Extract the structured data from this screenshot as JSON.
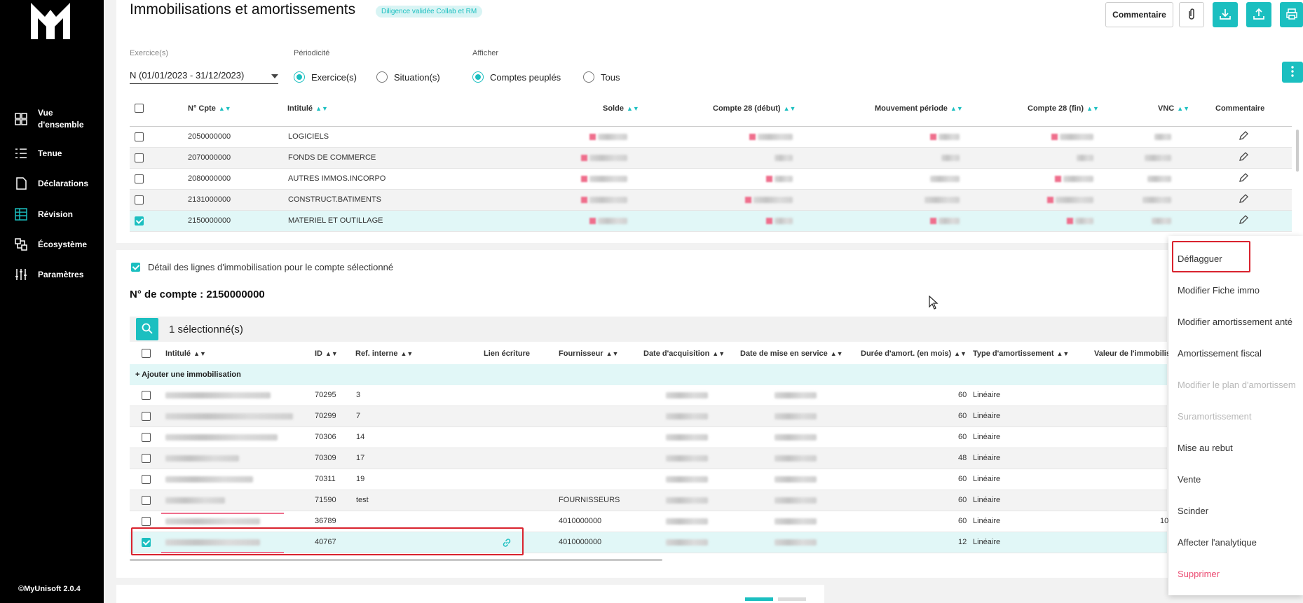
{
  "sidebar": {
    "items": [
      {
        "label": "Vue d'ensemble",
        "icon": "grid-icon"
      },
      {
        "label": "Tenue",
        "icon": "list-icon"
      },
      {
        "label": "Déclarations",
        "icon": "document-icon"
      },
      {
        "label": "Révision",
        "icon": "table-icon"
      },
      {
        "label": "Écosystème",
        "icon": "network-icon"
      },
      {
        "label": "Paramètres",
        "icon": "sliders-icon"
      }
    ],
    "version": "©MyUnisoft 2.0.4"
  },
  "header": {
    "title": "Immobilisations et amortissements",
    "badge": "Diligence validée Collab et RM",
    "comment_label": "Commentaire"
  },
  "filters": {
    "exercice_label": "Exercice(s)",
    "exercice_value": "N (01/01/2023 - 31/12/2023)",
    "periodicite_label": "Périodicité",
    "periodicite_options": [
      "Exercice(s)",
      "Situation(s)"
    ],
    "periodicite_selected": "Exercice(s)",
    "afficher_label": "Afficher",
    "afficher_options": [
      "Comptes peuplés",
      "Tous"
    ],
    "afficher_selected": "Comptes peuplés"
  },
  "accounts_table": {
    "headers": [
      "N° Cpte",
      "Intitulé",
      "Solde",
      "Compte 28 (début)",
      "Mouvement période",
      "Compte 28 (fin)",
      "VNC",
      "Commentaire"
    ],
    "rows": [
      {
        "num": "2050000000",
        "label": "LOGICIELS",
        "checked": false
      },
      {
        "num": "2070000000",
        "label": "FONDS DE COMMERCE",
        "checked": false
      },
      {
        "num": "2080000000",
        "label": "AUTRES IMMOS.INCORPO",
        "checked": false
      },
      {
        "num": "2131000000",
        "label": "CONSTRUCT.BATIMENTS",
        "checked": false
      },
      {
        "num": "2150000000",
        "label": "MATERIEL ET OUTILLAGE",
        "checked": true
      }
    ]
  },
  "detail": {
    "toggle_label": "Détail des lignes d'immobilisation pour le compte sélectionné",
    "account_title": "N° de compte : 2150000000",
    "selected_count": "1 sélectionné(s)",
    "add_label": "+ Ajouter une immobilisation",
    "headers": [
      "Intitulé",
      "ID",
      "Ref. interne",
      "Lien écriture",
      "Fournisseur",
      "Date d'acquisition",
      "Date de mise en service",
      "Durée d'amort. (en mois)",
      "Type d'amortissement",
      "Valeur de l'immobilis"
    ],
    "rows": [
      {
        "id": "70295",
        "ref": "3",
        "fournisseur": "",
        "duree": "60",
        "type": "Linéaire",
        "checked": false,
        "valeur": ""
      },
      {
        "id": "70299",
        "ref": "7",
        "fournisseur": "",
        "duree": "60",
        "type": "Linéaire",
        "checked": false,
        "valeur": ""
      },
      {
        "id": "70306",
        "ref": "14",
        "fournisseur": "",
        "duree": "60",
        "type": "Linéaire",
        "checked": false,
        "valeur": ""
      },
      {
        "id": "70309",
        "ref": "17",
        "fournisseur": "",
        "duree": "48",
        "type": "Linéaire",
        "checked": false,
        "valeur": ""
      },
      {
        "id": "70311",
        "ref": "19",
        "fournisseur": "",
        "duree": "60",
        "type": "Linéaire",
        "checked": false,
        "valeur": ""
      },
      {
        "id": "71590",
        "ref": "test",
        "fournisseur": "FOURNISSEURS",
        "duree": "60",
        "type": "Linéaire",
        "checked": false,
        "valeur": ""
      },
      {
        "id": "36789",
        "ref": "",
        "fournisseur": "4010000000",
        "duree": "60",
        "type": "Linéaire",
        "checked": false,
        "valeur": "10"
      },
      {
        "id": "40767",
        "ref": "",
        "fournisseur": "4010000000",
        "duree": "12",
        "type": "Linéaire",
        "checked": true,
        "valeur": ""
      }
    ]
  },
  "context_menu": {
    "items": [
      {
        "label": "Déflagguer",
        "disabled": false
      },
      {
        "label": "Modifier Fiche immo",
        "disabled": false
      },
      {
        "label": "Modifier amortissement anté",
        "disabled": false
      },
      {
        "label": "Amortissement fiscal",
        "disabled": false
      },
      {
        "label": "Modifier le plan d'amortissem",
        "disabled": true
      },
      {
        "label": "Suramortissement",
        "disabled": true
      },
      {
        "label": "Mise au rebut",
        "disabled": false
      },
      {
        "label": "Vente",
        "disabled": false
      },
      {
        "label": "Scinder",
        "disabled": false
      },
      {
        "label": "Affecter l'analytique",
        "disabled": false
      },
      {
        "label": "Supprimer",
        "disabled": false
      }
    ]
  },
  "colors": {
    "accent": "#1bbfc0",
    "danger": "#ec4d73",
    "highlight_box": "#d9232e",
    "sidebar_bg": "#000000"
  }
}
